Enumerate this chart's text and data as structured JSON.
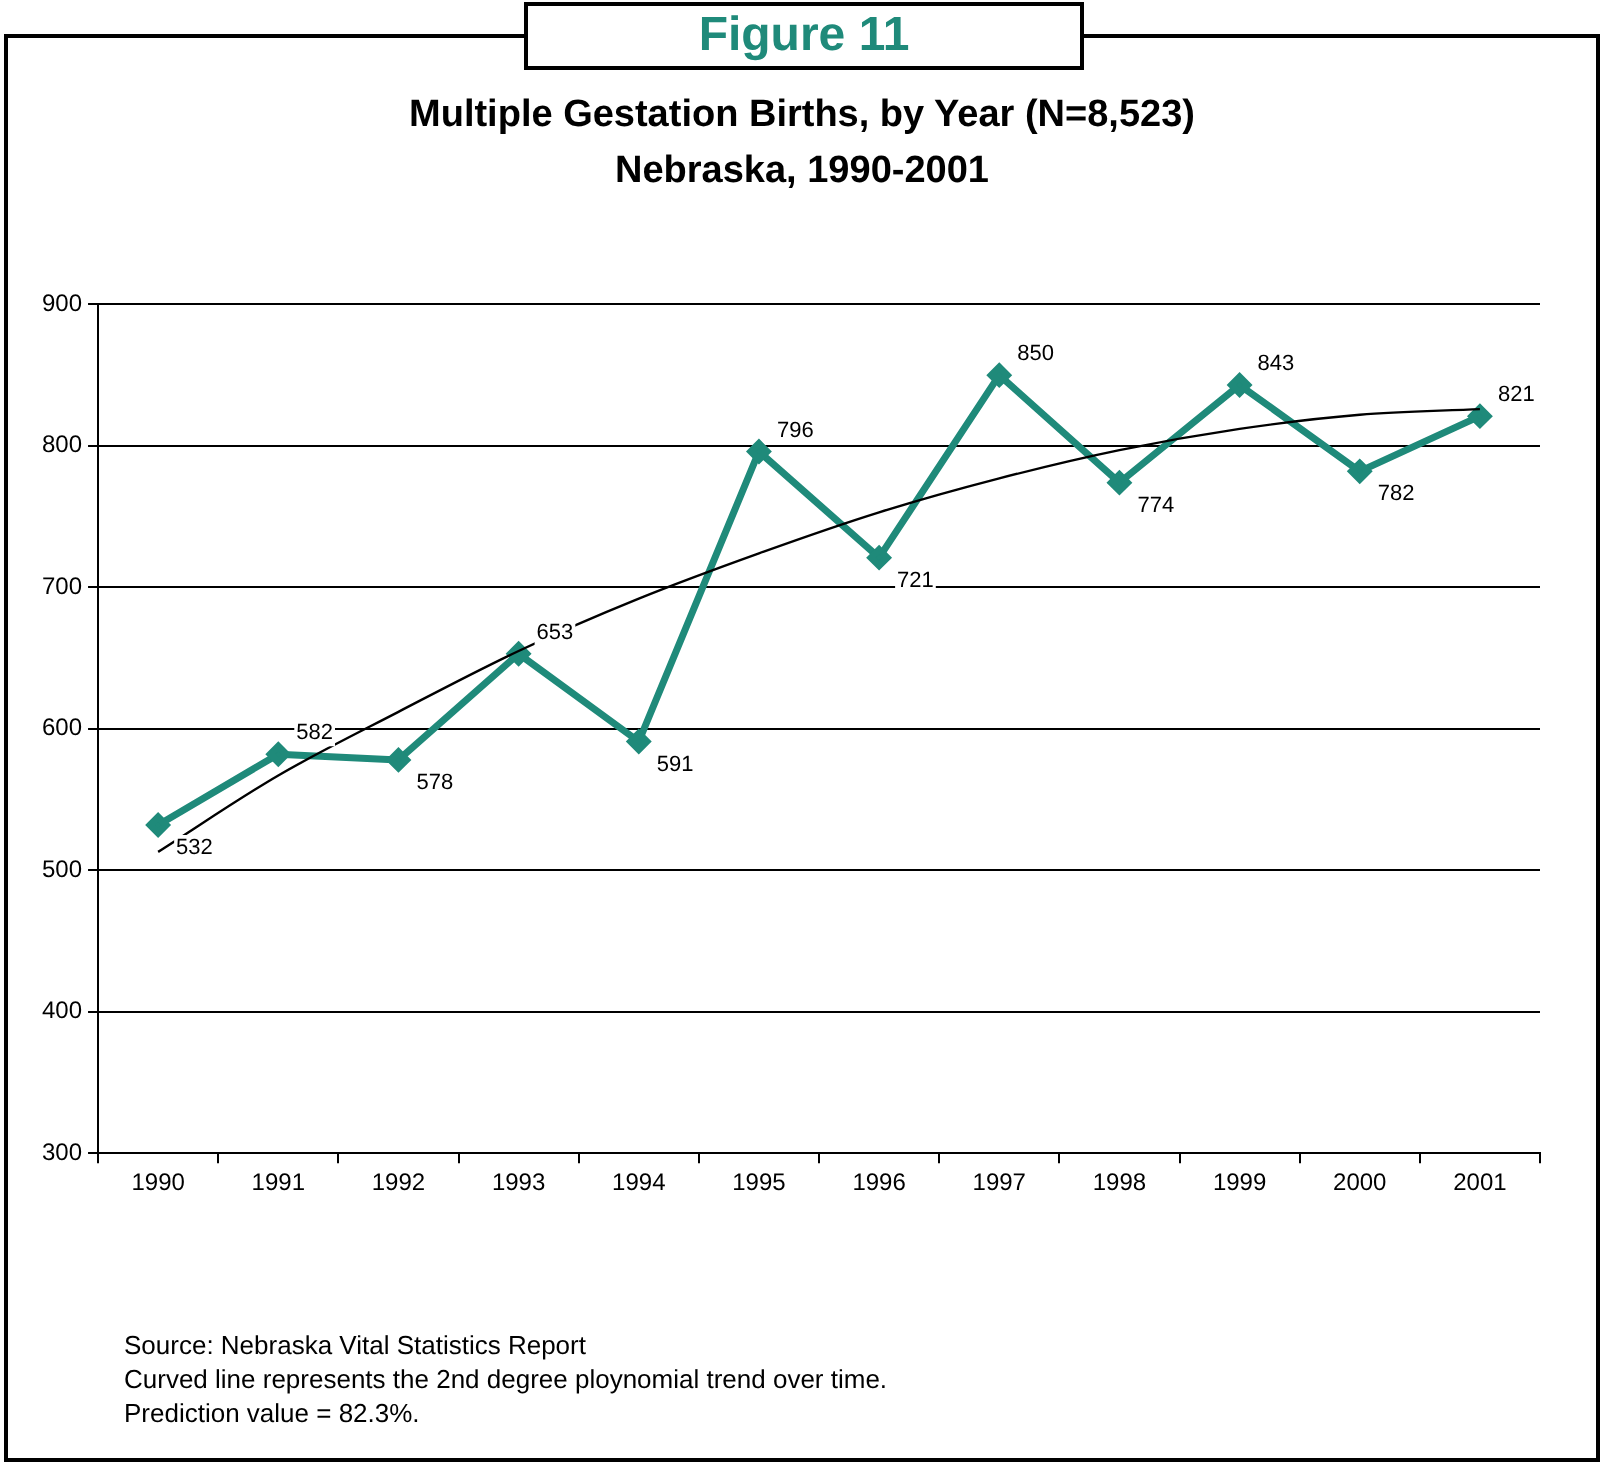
{
  "chart_data": {
    "type": "line",
    "title": "Multiple Gestation Births, by Year (N=8,523)",
    "subtitle": "Nebraska, 1990-2001",
    "categories": [
      "1990",
      "1991",
      "1992",
      "1993",
      "1994",
      "1995",
      "1996",
      "1997",
      "1998",
      "1999",
      "2000",
      "2001"
    ],
    "series": [
      {
        "color": "#1f8a7a",
        "values": [
          532,
          582,
          578,
          653,
          591,
          796,
          721,
          850,
          774,
          843,
          782,
          821
        ],
        "marker": "diamond",
        "data_labels": true
      },
      {
        "color": "#000000",
        "values": [
          513,
          567,
          612,
          655,
          692,
          724,
          753,
          777,
          797,
          812,
          822,
          826
        ],
        "marker": "none"
      }
    ],
    "ylim": [
      300,
      900
    ],
    "yticks": [
      300,
      400,
      500,
      600,
      700,
      800,
      900
    ],
    "grid": "y",
    "legend": false,
    "line_style": "solid",
    "annotations": [
      "Figure 11",
      "Source: Nebraska Vital Statistics Report",
      "Curved line represents the 2nd degree ploynomial trend over time.",
      "Prediction value = 82.3%."
    ]
  }
}
